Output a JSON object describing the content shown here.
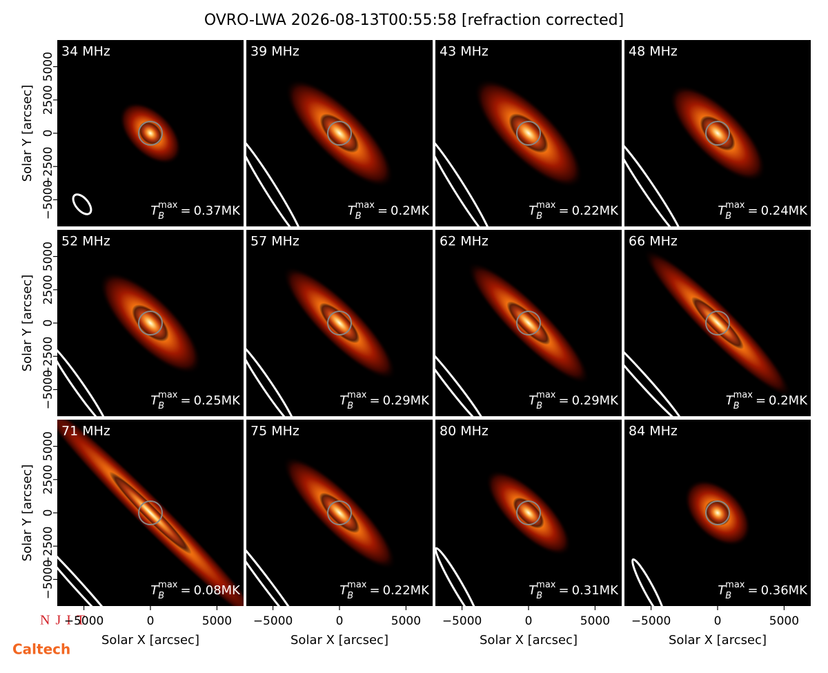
{
  "chart_data": {
    "type": "image_grid",
    "title": "OVRO-LWA 2026-08-13T00:55:58 [refraction corrected]",
    "xlabel": "Solar X [arcsec]",
    "ylabel": "Solar Y [arcsec]",
    "xlim": [
      -7000,
      7000
    ],
    "ylim": [
      -7000,
      7000
    ],
    "xticks": [
      {
        "value": -5000,
        "label": "−5000"
      },
      0,
      5000
    ],
    "yticks": [
      {
        "value": -5000,
        "label": "−5000"
      },
      {
        "value": -2500,
        "label": "−2500"
      },
      0,
      2500,
      5000
    ],
    "tb_symbol": {
      "symbol": "T",
      "sub": "B",
      "sup": "max",
      "eq": "="
    },
    "panels": [
      {
        "label": "34 MHz",
        "tb_max": "0.37MK"
      },
      {
        "label": "39 MHz",
        "tb_max": "0.2MK"
      },
      {
        "label": "43 MHz",
        "tb_max": "0.22MK"
      },
      {
        "label": "48 MHz",
        "tb_max": "0.24MK"
      },
      {
        "label": "52 MHz",
        "tb_max": "0.25MK"
      },
      {
        "label": "57 MHz",
        "tb_max": "0.29MK"
      },
      {
        "label": "62 MHz",
        "tb_max": "0.29MK"
      },
      {
        "label": "66 MHz",
        "tb_max": "0.2MK"
      },
      {
        "label": "71 MHz",
        "tb_max": "0.08MK"
      },
      {
        "label": "75 MHz",
        "tb_max": "0.22MK"
      },
      {
        "label": "80 MHz",
        "tb_max": "0.31MK"
      },
      {
        "label": "84 MHz",
        "tb_max": "0.36MK"
      }
    ],
    "logos": {
      "njit": "NJIT",
      "caltech": "Caltech"
    }
  }
}
